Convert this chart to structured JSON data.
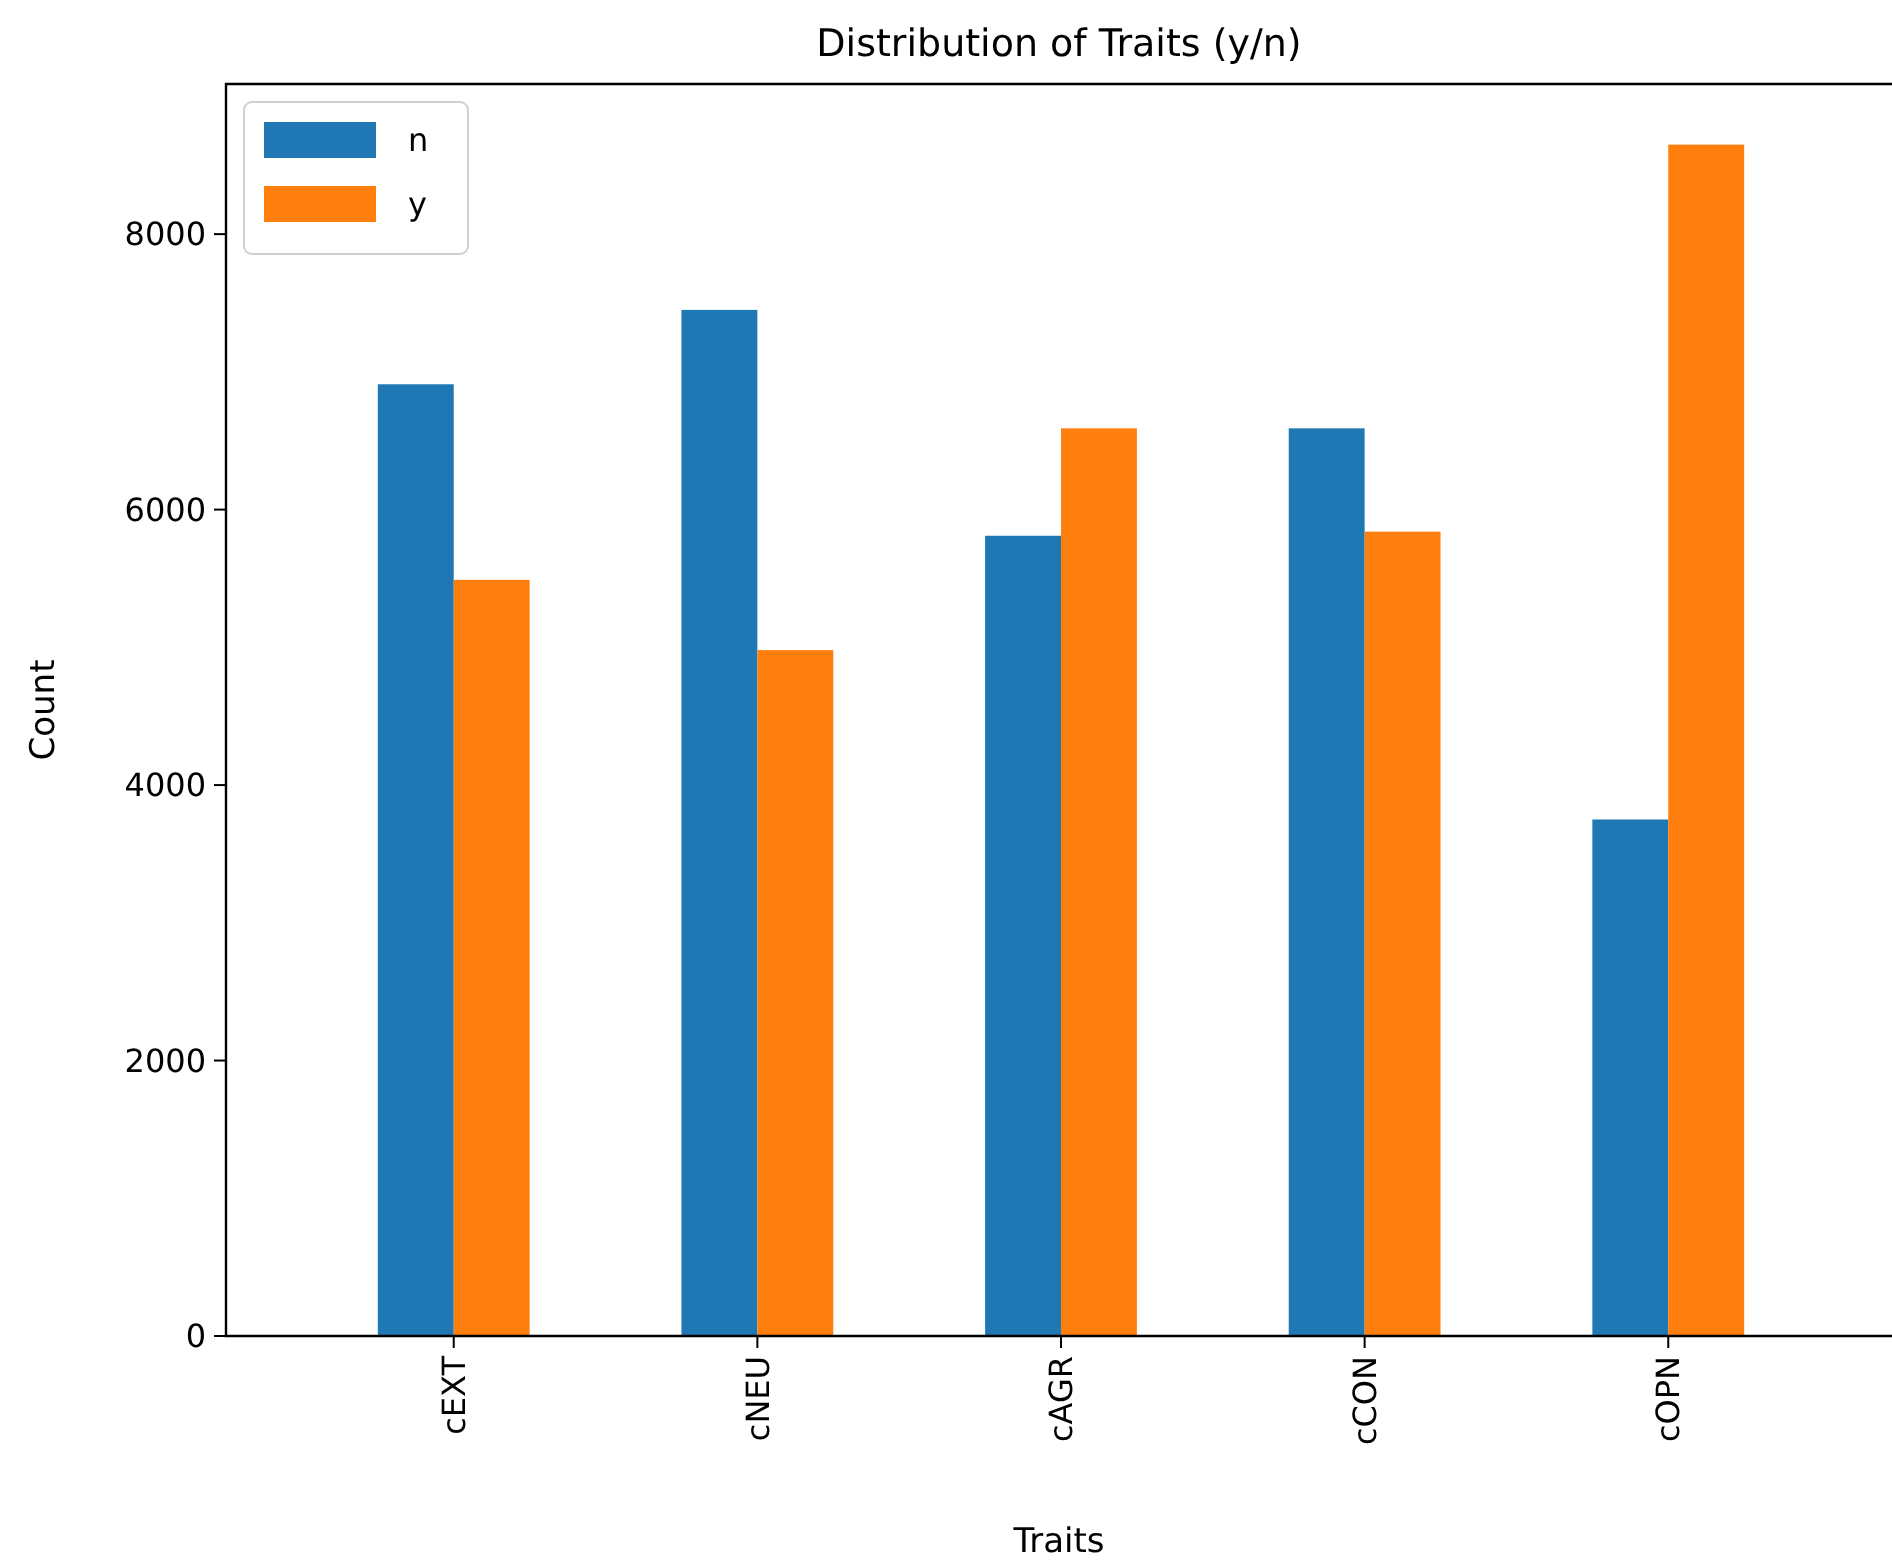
{
  "chart_data": {
    "type": "bar",
    "title": "Distribution of Traits (y/n)",
    "xlabel": "Traits",
    "ylabel": "Count",
    "categories": [
      "cEXT",
      "cNEU",
      "cAGR",
      "cCON",
      "cOPN"
    ],
    "series": [
      {
        "name": "n",
        "color": "#1f77b4",
        "values": [
          6910,
          7450,
          5810,
          6590,
          3750
        ]
      },
      {
        "name": "y",
        "color": "#ff7f0e",
        "values": [
          5490,
          4980,
          6590,
          5840,
          8650
        ]
      }
    ],
    "ylim": [
      0,
      9090
    ],
    "yticks": [
      0,
      2000,
      4000,
      6000,
      8000
    ],
    "legend": "top left",
    "grid": false
  }
}
